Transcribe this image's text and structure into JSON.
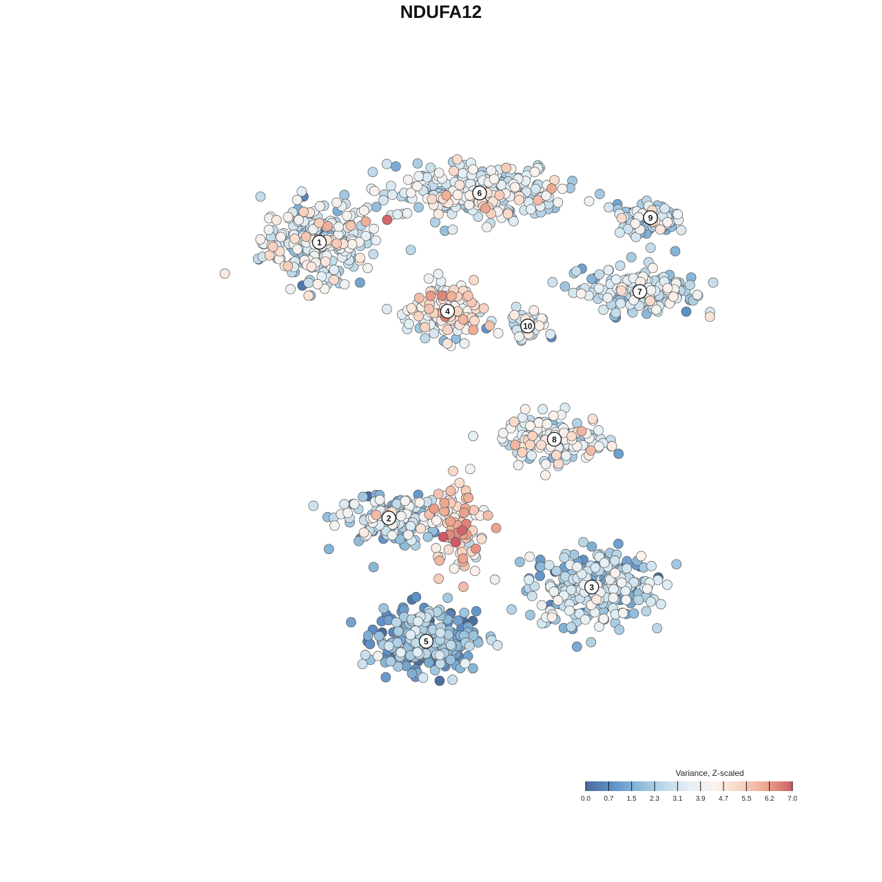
{
  "chart_data": {
    "type": "scatter",
    "title": "NDUFA12",
    "xlabel": "",
    "ylabel": "",
    "grid": false,
    "clusters": [
      {
        "label": "1",
        "x": -2.6,
        "y": 2.9,
        "spread": [
          0.95,
          0.75
        ],
        "n": 260,
        "mean": 3.2
      },
      {
        "label": "2",
        "x": -1.3,
        "y": -2.7,
        "spread": [
          0.9,
          0.45
        ],
        "n": 150,
        "mean": 2.6
      },
      {
        "label": "3",
        "x": 2.5,
        "y": -4.1,
        "spread": [
          1.1,
          0.7
        ],
        "n": 280,
        "mean": 2.2
      },
      {
        "label": "4",
        "x": -0.2,
        "y": 1.5,
        "spread": [
          0.55,
          0.5
        ],
        "n": 170,
        "mean": 3.9
      },
      {
        "label": "5",
        "x": -0.6,
        "y": -5.2,
        "spread": [
          0.85,
          0.55
        ],
        "n": 300,
        "mean": 1.3
      },
      {
        "label": "6",
        "x": 0.4,
        "y": 3.9,
        "spread": [
          1.5,
          0.5
        ],
        "n": 260,
        "mean": 3.3
      },
      {
        "label": "7",
        "x": 3.4,
        "y": 1.9,
        "spread": [
          1.0,
          0.45
        ],
        "n": 160,
        "mean": 2.7
      },
      {
        "label": "8",
        "x": 1.8,
        "y": -1.1,
        "spread": [
          0.9,
          0.45
        ],
        "n": 140,
        "mean": 3.6
      },
      {
        "label": "9",
        "x": 3.6,
        "y": 3.4,
        "spread": [
          0.6,
          0.3
        ],
        "n": 80,
        "mean": 2.6
      },
      {
        "label": "10",
        "x": 1.3,
        "y": 1.2,
        "spread": [
          0.35,
          0.3
        ],
        "n": 40,
        "mean": 2.8
      }
    ],
    "hotspot": {
      "x": 0.0,
      "y": -2.9,
      "spread": [
        0.5,
        0.8
      ],
      "n": 90,
      "mean": 5.2
    },
    "xlim": [
      -6.0,
      6.0
    ],
    "ylim": [
      -7.5,
      5.3
    ],
    "legend": {
      "title": "Variance, Z-scaled",
      "placement": "bottom-right",
      "ticks": [
        "0.0",
        "0.7",
        "1.5",
        "2.3",
        "3.1",
        "3.9",
        "4.7",
        "5.5",
        "6.2",
        "7.0"
      ],
      "range": [
        0.0,
        7.0
      ]
    }
  },
  "colors": {
    "scale": [
      "#4a6b99",
      "#5e8fc6",
      "#89b7d8",
      "#bcd8e8",
      "#e4eff5",
      "#fbf2ec",
      "#f8d4c2",
      "#eda58e",
      "#cc5a64"
    ]
  }
}
